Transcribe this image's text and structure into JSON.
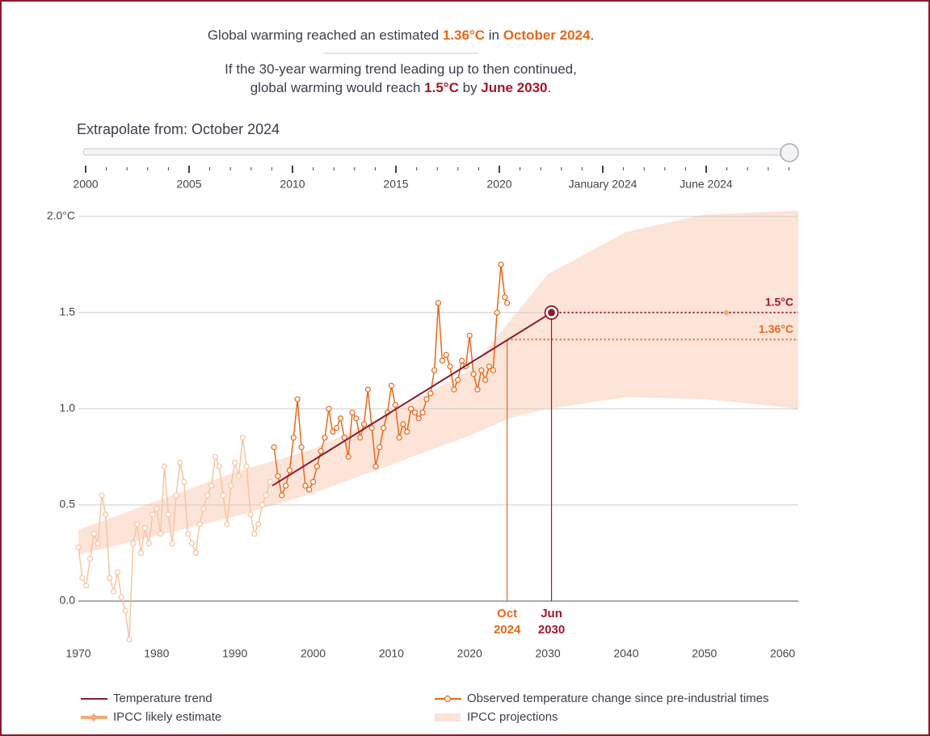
{
  "headline": {
    "lines": [
      [
        {
          "text": "Global warming reached an estimated "
        },
        {
          "text": "1.36°C",
          "color": "#e8671b"
        },
        {
          "text": " in "
        },
        {
          "text": "October 2024",
          "color": "#e8671b"
        },
        {
          "text": "."
        }
      ],
      [
        {
          "text": "If the 30-year warming trend leading up to then continued,"
        }
      ],
      [
        {
          "text": "global warming would reach "
        },
        {
          "text": "1.5°C",
          "color": "#a3182b"
        },
        {
          "text": " by "
        },
        {
          "text": "June 2030",
          "color": "#a3182b"
        },
        {
          "text": "."
        }
      ]
    ]
  },
  "slider": {
    "label": "Extrapolate from: October 2024",
    "ticks": [
      "2000",
      "2005",
      "2010",
      "2015",
      "2020",
      "January 2024",
      "June 2024"
    ]
  },
  "chart_data": {
    "type": "line",
    "xlim": [
      1970,
      2062
    ],
    "xticks": [
      1970,
      1980,
      1990,
      2000,
      2010,
      2020,
      2030,
      2040,
      2050,
      2060
    ],
    "ylim": [
      -0.25,
      2.05
    ],
    "yticks": [
      {
        "value": 0,
        "label": "0.0"
      },
      0.5,
      {
        "value": 1,
        "label": "1.0"
      },
      1.5,
      {
        "value": 2,
        "label": "2.0°C"
      }
    ],
    "grid": true,
    "series": [
      {
        "name": "Temperature trend",
        "color": "#8b1a2b",
        "x": [
          1994.79,
          2030.46
        ],
        "values": [
          0.6,
          1.5
        ]
      },
      {
        "name": "Observed temperature change since pre-industrial times",
        "color": "#e8671b",
        "faded_color": "#f6c4a2",
        "marker": "circle",
        "x": [
          1970,
          1970.5,
          1971,
          1971.5,
          1972,
          1972.5,
          1973,
          1973.5,
          1974,
          1974.5,
          1975,
          1975.5,
          1976,
          1976.5,
          1977,
          1977.5,
          1978,
          1978.5,
          1979,
          1979.5,
          1980,
          1980.5,
          1981,
          1981.5,
          1982,
          1982.5,
          1983,
          1983.5,
          1984,
          1984.5,
          1985,
          1985.5,
          1986,
          1986.5,
          1987,
          1987.5,
          1988,
          1988.5,
          1989,
          1989.5,
          1990,
          1990.5,
          1991,
          1991.5,
          1992,
          1992.5,
          1993,
          1993.5,
          1994,
          1994.5,
          1995,
          1995.5,
          1996,
          1996.5,
          1997,
          1997.5,
          1998,
          1998.5,
          1999,
          1999.5,
          2000,
          2000.5,
          2001,
          2001.5,
          2002,
          2002.5,
          2003,
          2003.5,
          2004,
          2004.5,
          2005,
          2005.5,
          2006,
          2006.5,
          2007,
          2007.5,
          2008,
          2008.5,
          2009,
          2009.5,
          2010,
          2010.5,
          2011,
          2011.5,
          2012,
          2012.5,
          2013,
          2013.5,
          2014,
          2014.5,
          2015,
          2015.5,
          2016,
          2016.5,
          2017,
          2017.5,
          2018,
          2018.5,
          2019,
          2019.5,
          2020,
          2020.5,
          2021,
          2021.5,
          2022,
          2022.5,
          2023,
          2023.5,
          2024,
          2024.5,
          2024.79
        ],
        "values": [
          0.28,
          0.12,
          0.08,
          0.22,
          0.35,
          0.3,
          0.55,
          0.45,
          0.12,
          0.05,
          0.15,
          0.02,
          -0.05,
          -0.2,
          0.3,
          0.4,
          0.25,
          0.38,
          0.3,
          0.45,
          0.48,
          0.35,
          0.7,
          0.45,
          0.3,
          0.55,
          0.72,
          0.62,
          0.35,
          0.3,
          0.25,
          0.4,
          0.48,
          0.55,
          0.6,
          0.75,
          0.7,
          0.55,
          0.4,
          0.6,
          0.72,
          0.65,
          0.85,
          0.7,
          0.45,
          0.35,
          0.4,
          0.5,
          0.55,
          0.62,
          0.8,
          0.65,
          0.55,
          0.6,
          0.68,
          0.85,
          1.05,
          0.8,
          0.6,
          0.58,
          0.62,
          0.7,
          0.78,
          0.85,
          1.0,
          0.88,
          0.9,
          0.95,
          0.85,
          0.75,
          0.98,
          0.95,
          0.85,
          0.92,
          1.1,
          0.9,
          0.7,
          0.8,
          0.9,
          0.98,
          1.12,
          1.02,
          0.85,
          0.92,
          0.88,
          1.0,
          0.98,
          0.95,
          0.98,
          1.05,
          1.08,
          1.2,
          1.55,
          1.25,
          1.28,
          1.22,
          1.1,
          1.15,
          1.25,
          1.22,
          1.38,
          1.18,
          1.1,
          1.2,
          1.15,
          1.22,
          1.2,
          1.5,
          1.75,
          1.58,
          1.55
        ]
      },
      {
        "name": "IPCC likely estimate",
        "color": "#f4a876",
        "marker": "diamond",
        "x": [
          2052.8
        ],
        "values": [
          1.5
        ]
      },
      {
        "name": "IPCC projections",
        "color": "#fde4d8",
        "x": [
          1970,
          1990,
          2000,
          2010,
          2020,
          2025,
          2030,
          2040,
          2050,
          2062
        ],
        "upper": [
          0.37,
          0.67,
          0.79,
          0.98,
          1.2,
          1.45,
          1.7,
          1.92,
          2.01,
          2.03
        ],
        "lower": [
          0.24,
          0.44,
          0.56,
          0.71,
          0.86,
          0.95,
          1.0,
          1.06,
          1.05,
          1.0
        ]
      }
    ],
    "annotations": [
      {
        "x": 2024.79,
        "y": 1.36,
        "label": "1.36°C",
        "date": [
          "Oct",
          "2024"
        ],
        "color": "#e8671b"
      },
      {
        "x": 2030.46,
        "y": 1.5,
        "label": "1.5°C",
        "date": [
          "Jun",
          "2030"
        ],
        "color": "#a3182b"
      }
    ]
  }
}
